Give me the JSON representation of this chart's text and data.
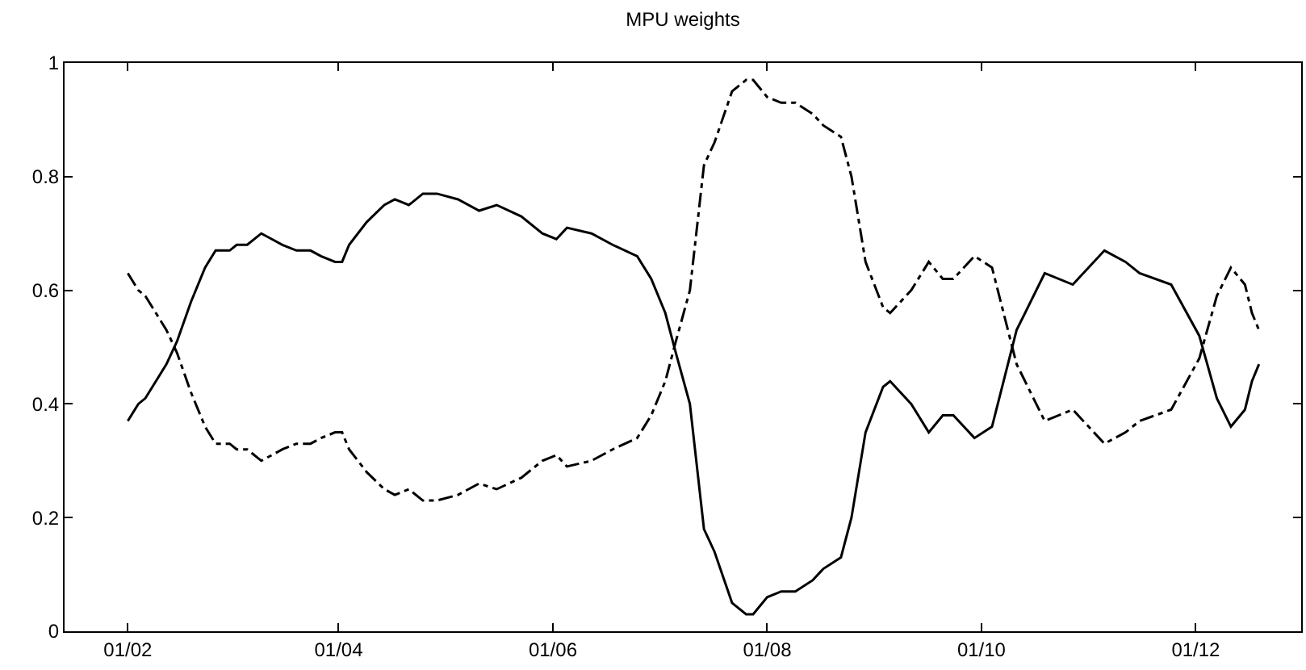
{
  "chart_data": {
    "type": "line",
    "title": "MPU weights",
    "x": [
      "--02-01",
      "--02-04",
      "--02-06",
      "--02-09",
      "--02-12",
      "--02-15",
      "--02-19",
      "--02-23",
      "--02-26",
      "--03-01",
      "--03-03",
      "--03-06",
      "--03-10",
      "--03-13",
      "--03-16",
      "--03-20",
      "--03-24",
      "--03-27",
      "--03-31",
      "--04-02",
      "--04-04",
      "--04-09",
      "--04-14",
      "--04-17",
      "--04-21",
      "--04-25",
      "--04-29",
      "--05-05",
      "--05-11",
      "--05-16",
      "--05-23",
      "--05-29",
      "--06-02",
      "--06-05",
      "--06-12",
      "--06-18",
      "--06-25",
      "--06-29",
      "--07-03",
      "--07-06",
      "--07-10",
      "--07-14",
      "--07-17",
      "--07-22",
      "--07-26",
      "--07-28",
      "--08-01",
      "--08-05",
      "--08-09",
      "--08-14",
      "--08-17",
      "--08-22",
      "--08-25",
      "--08-29",
      "--09-03",
      "--09-05",
      "--09-11",
      "--09-16",
      "--09-20",
      "--09-23",
      "--09-29",
      "--10-04",
      "--10-11",
      "--10-19",
      "--10-27",
      "--11-05",
      "--11-11",
      "--11-15",
      "--11-24",
      "--12-02",
      "--12-07",
      "--12-11",
      "--12-15",
      "--12-17",
      "--12-19"
    ],
    "series": [
      {
        "color": "#000000",
        "line_style": "solid",
        "values": [
          0.37,
          0.4,
          0.41,
          0.44,
          0.47,
          0.51,
          0.58,
          0.64,
          0.67,
          0.67,
          0.68,
          0.68,
          0.7,
          0.69,
          0.68,
          0.67,
          0.67,
          0.66,
          0.65,
          0.65,
          0.68,
          0.72,
          0.75,
          0.76,
          0.75,
          0.77,
          0.77,
          0.76,
          0.74,
          0.75,
          0.73,
          0.7,
          0.69,
          0.71,
          0.7,
          0.68,
          0.66,
          0.62,
          0.56,
          0.49,
          0.4,
          0.18,
          0.14,
          0.05,
          0.03,
          0.03,
          0.06,
          0.07,
          0.07,
          0.09,
          0.11,
          0.13,
          0.2,
          0.35,
          0.43,
          0.44,
          0.4,
          0.35,
          0.38,
          0.38,
          0.34,
          0.36,
          0.53,
          0.63,
          0.61,
          0.67,
          0.65,
          0.63,
          0.61,
          0.52,
          0.41,
          0.36,
          0.39,
          0.44,
          0.47
        ]
      },
      {
        "color": "#000000",
        "line_style": "dashdot",
        "values": [
          0.63,
          0.6,
          0.59,
          0.56,
          0.53,
          0.49,
          0.42,
          0.36,
          0.33,
          0.33,
          0.32,
          0.32,
          0.3,
          0.31,
          0.32,
          0.33,
          0.33,
          0.34,
          0.35,
          0.35,
          0.32,
          0.28,
          0.25,
          0.24,
          0.25,
          0.23,
          0.23,
          0.24,
          0.26,
          0.25,
          0.27,
          0.3,
          0.31,
          0.29,
          0.3,
          0.32,
          0.34,
          0.38,
          0.44,
          0.51,
          0.6,
          0.82,
          0.86,
          0.95,
          0.97,
          0.97,
          0.94,
          0.93,
          0.93,
          0.91,
          0.89,
          0.87,
          0.8,
          0.65,
          0.57,
          0.56,
          0.6,
          0.65,
          0.62,
          0.62,
          0.66,
          0.64,
          0.47,
          0.37,
          0.39,
          0.33,
          0.35,
          0.37,
          0.39,
          0.48,
          0.59,
          0.64,
          0.61,
          0.56,
          0.53
        ]
      }
    ],
    "xlim": [
      "--01-14",
      "--12-31"
    ],
    "xticks": [
      {
        "value": "--02-01",
        "label": "01/02"
      },
      {
        "value": "--04-01",
        "label": "01/04"
      },
      {
        "value": "--06-01",
        "label": "01/06"
      },
      {
        "value": "--08-01",
        "label": "01/08"
      },
      {
        "value": "--10-01",
        "label": "01/10"
      },
      {
        "value": "--12-01",
        "label": "01/12"
      }
    ],
    "ylim": [
      0,
      1
    ],
    "yticks": [
      0,
      {
        "value": 0.2,
        "label": "0.2"
      },
      {
        "value": 0.4,
        "label": "0.4"
      },
      {
        "value": 0.6,
        "label": "0.6"
      },
      {
        "value": 0.8,
        "label": "0.8"
      },
      1
    ],
    "marker": "none"
  }
}
